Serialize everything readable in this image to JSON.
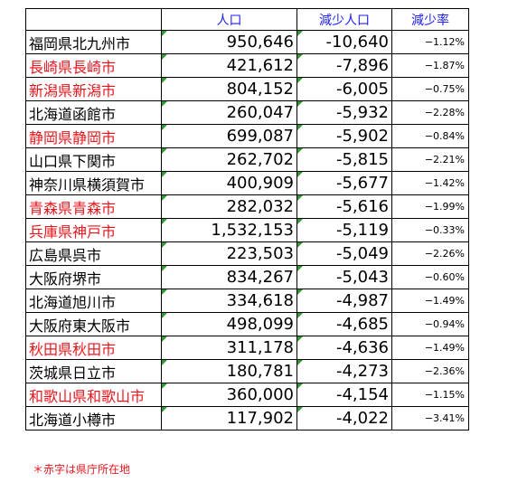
{
  "headers": {
    "city": "",
    "population": "人口",
    "decrease": "減少人口",
    "rate": "減少率"
  },
  "rows": [
    {
      "city": "福岡県北九州市",
      "capital": false,
      "population": "950,646",
      "decrease": "-10,640",
      "rate": "−1.12%"
    },
    {
      "city": "長崎県長崎市",
      "capital": true,
      "population": "421,612",
      "decrease": "-7,896",
      "rate": "−1.87%"
    },
    {
      "city": "新潟県新潟市",
      "capital": true,
      "population": "804,152",
      "decrease": "-6,005",
      "rate": "−0.75%"
    },
    {
      "city": "北海道函館市",
      "capital": false,
      "population": "260,047",
      "decrease": "-5,932",
      "rate": "−2.28%"
    },
    {
      "city": "静岡県静岡市",
      "capital": true,
      "population": "699,087",
      "decrease": "-5,902",
      "rate": "−0.84%"
    },
    {
      "city": "山口県下関市",
      "capital": false,
      "population": "262,702",
      "decrease": "-5,815",
      "rate": "−2.21%"
    },
    {
      "city": "神奈川県横須賀市",
      "capital": false,
      "population": "400,909",
      "decrease": "-5,677",
      "rate": "−1.42%"
    },
    {
      "city": "青森県青森市",
      "capital": true,
      "population": "282,032",
      "decrease": "-5,616",
      "rate": "−1.99%"
    },
    {
      "city": "兵庫県神戸市",
      "capital": true,
      "population": "1,532,153",
      "decrease": "-5,119",
      "rate": "−0.33%"
    },
    {
      "city": "広島県呉市",
      "capital": false,
      "population": "223,503",
      "decrease": "-5,049",
      "rate": "−2.26%"
    },
    {
      "city": "大阪府堺市",
      "capital": false,
      "population": "834,267",
      "decrease": "-5,043",
      "rate": "−0.60%"
    },
    {
      "city": "北海道旭川市",
      "capital": false,
      "population": "334,618",
      "decrease": "-4,987",
      "rate": "−1.49%"
    },
    {
      "city": "大阪府東大阪市",
      "capital": false,
      "population": "498,099",
      "decrease": "-4,685",
      "rate": "−0.94%"
    },
    {
      "city": "秋田県秋田市",
      "capital": true,
      "population": "311,178",
      "decrease": "-4,636",
      "rate": "−1.49%"
    },
    {
      "city": "茨城県日立市",
      "capital": false,
      "population": "180,781",
      "decrease": "-4,273",
      "rate": "−2.36%"
    },
    {
      "city": "和歌山県和歌山市",
      "capital": true,
      "population": "360,000",
      "decrease": "-4,154",
      "rate": "−1.15%"
    },
    {
      "city": "北海道小樽市",
      "capital": false,
      "population": "117,902",
      "decrease": "-4,022",
      "rate": "−3.41%"
    }
  ],
  "note": "＊赤字は県庁所在地",
  "colors": {
    "header_text": "#1d1dff",
    "capital_text": "#e8141b",
    "normal_text": "#000000",
    "cell_marker": "#2e9a2e"
  }
}
